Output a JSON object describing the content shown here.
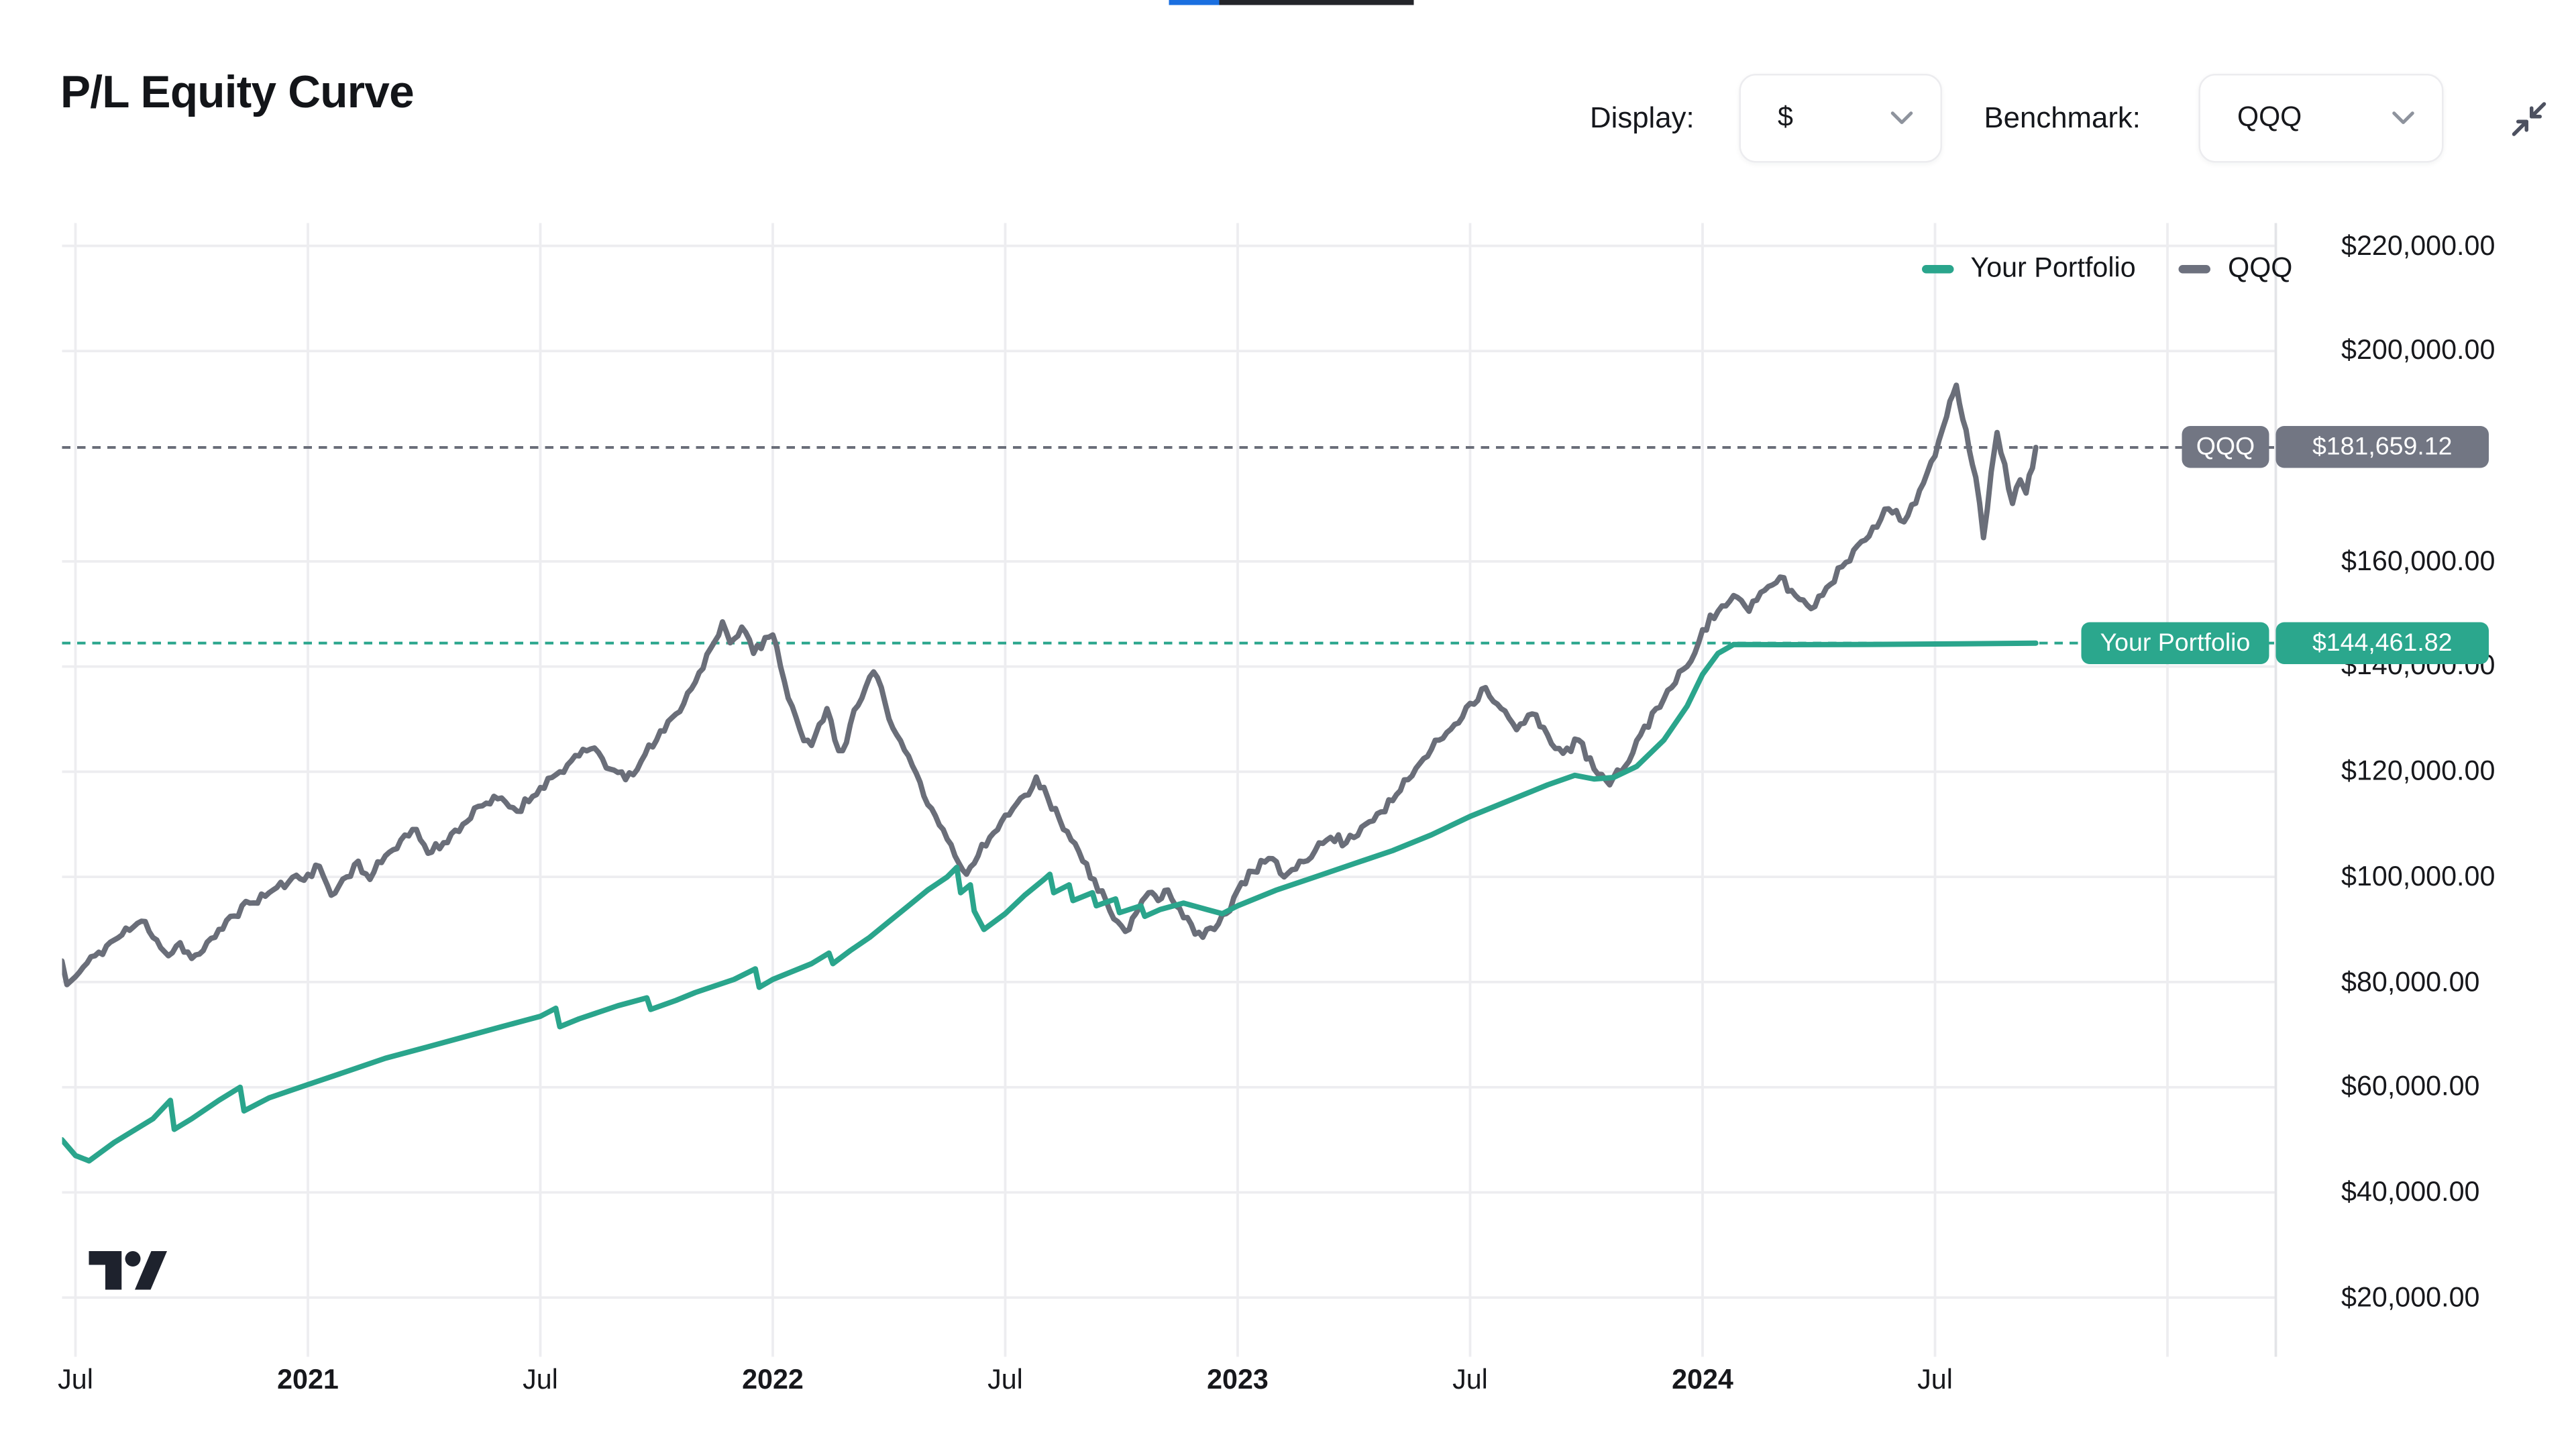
{
  "page": {
    "title": "P/L Equity Curve"
  },
  "top_bars": {
    "blue_color": "#1a6fe0",
    "dark_color": "#23252a"
  },
  "controls": {
    "display_label": "Display:",
    "display_value": "$",
    "benchmark_label": "Benchmark:",
    "benchmark_value": "QQQ"
  },
  "legend": {
    "items": [
      {
        "label": "Your Portfolio",
        "color": "#2aa58c"
      },
      {
        "label": "QQQ",
        "color": "#6d717e"
      }
    ]
  },
  "price_labels": {
    "benchmark": {
      "name": "QQQ",
      "value_text": "$181,659.12",
      "value": 181659.12,
      "color": "#727683"
    },
    "portfolio": {
      "name": "Your Portfolio",
      "value_text": "$144,461.82",
      "value": 144461.82,
      "color": "#2ba78d"
    }
  },
  "chart_data": {
    "type": "line",
    "title": "P/L Equity Curve",
    "x_unit": "months since 2020-07",
    "value_unit": "USD thousands",
    "grid": true,
    "legend_position": "top-right",
    "xlim": [
      -0.35,
      56.8
    ],
    "ylim": [
      10000,
      224500
    ],
    "x_ticks": [
      {
        "m": 0,
        "label": "Jul",
        "bold": false
      },
      {
        "m": 6,
        "label": "2021",
        "bold": true
      },
      {
        "m": 12,
        "label": "Jul",
        "bold": false
      },
      {
        "m": 18,
        "label": "2022",
        "bold": true
      },
      {
        "m": 24,
        "label": "Jul",
        "bold": false
      },
      {
        "m": 30,
        "label": "2023",
        "bold": true
      },
      {
        "m": 36,
        "label": "Jul",
        "bold": false
      },
      {
        "m": 42,
        "label": "2024",
        "bold": true
      },
      {
        "m": 48,
        "label": "Jul",
        "bold": false
      },
      {
        "m": 54,
        "label": "",
        "bold": false
      }
    ],
    "y_ticks": [
      {
        "v": 220000,
        "label": "$220,000.00"
      },
      {
        "v": 200000,
        "label": "$200,000.00"
      },
      {
        "v": 160000,
        "label": "$160,000.00"
      },
      {
        "v": 140000,
        "label": "$140,000.00"
      },
      {
        "v": 120000,
        "label": "$120,000.00"
      },
      {
        "v": 100000,
        "label": "$100,000.00"
      },
      {
        "v": 80000,
        "label": "$80,000.00"
      },
      {
        "v": 60000,
        "label": "$60,000.00"
      },
      {
        "v": 40000,
        "label": "$40,000.00"
      },
      {
        "v": 20000,
        "label": "$20,000.00"
      }
    ],
    "reference_lines": [
      {
        "series": "QQQ",
        "value": 181659.12
      },
      {
        "series": "Your Portfolio",
        "value": 144461.82
      }
    ],
    "series": [
      {
        "name": "QQQ",
        "color": "#6a6e79",
        "width": 3.2,
        "jitter": 1.15,
        "seed": 11,
        "points": [
          [
            -0.35,
            84
          ],
          [
            -0.22,
            79.5
          ],
          [
            0,
            81
          ],
          [
            0.5,
            85
          ],
          [
            1,
            88
          ],
          [
            1.5,
            90.5
          ],
          [
            1.8,
            91.5
          ],
          [
            2.1,
            88
          ],
          [
            2.4,
            85
          ],
          [
            2.7,
            87.5
          ],
          [
            3,
            84.5
          ],
          [
            3.3,
            86
          ],
          [
            3.6,
            88.5
          ],
          [
            4,
            92.5
          ],
          [
            4.5,
            95
          ],
          [
            5,
            97
          ],
          [
            5.5,
            99
          ],
          [
            6,
            100.5
          ],
          [
            6.3,
            102
          ],
          [
            6.6,
            96.5
          ],
          [
            7,
            100
          ],
          [
            7.3,
            103
          ],
          [
            7.6,
            99.5
          ],
          [
            8,
            104
          ],
          [
            8.4,
            107
          ],
          [
            8.8,
            109
          ],
          [
            9.1,
            104.5
          ],
          [
            9.5,
            106.5
          ],
          [
            10,
            110
          ],
          [
            10.5,
            113.5
          ],
          [
            11,
            115
          ],
          [
            11.4,
            112.5
          ],
          [
            12,
            117
          ],
          [
            12.5,
            120
          ],
          [
            13,
            123
          ],
          [
            13.4,
            124.5
          ],
          [
            13.8,
            120.5
          ],
          [
            14.2,
            118.5
          ],
          [
            14.6,
            122
          ],
          [
            15,
            126
          ],
          [
            15.5,
            131
          ],
          [
            16,
            137
          ],
          [
            16.4,
            143.5
          ],
          [
            16.7,
            148.5
          ],
          [
            16.9,
            144.5
          ],
          [
            17.2,
            147.5
          ],
          [
            17.5,
            142.5
          ],
          [
            17.8,
            145.5
          ],
          [
            18,
            146
          ],
          [
            18.2,
            140
          ],
          [
            18.4,
            134
          ],
          [
            18.7,
            128
          ],
          [
            19,
            125
          ],
          [
            19.2,
            129
          ],
          [
            19.4,
            132
          ],
          [
            19.6,
            126
          ],
          [
            19.8,
            124
          ],
          [
            20,
            129
          ],
          [
            20.3,
            134
          ],
          [
            20.6,
            139
          ],
          [
            20.9,
            133
          ],
          [
            21.2,
            127
          ],
          [
            21.5,
            123
          ],
          [
            21.8,
            118
          ],
          [
            22.1,
            113
          ],
          [
            22.4,
            109
          ],
          [
            22.7,
            104
          ],
          [
            23,
            100.5
          ],
          [
            23.3,
            104
          ],
          [
            23.6,
            107.5
          ],
          [
            23.9,
            110.5
          ],
          [
            24.2,
            113
          ],
          [
            24.5,
            115.5
          ],
          [
            24.8,
            119
          ],
          [
            25.1,
            115
          ],
          [
            25.4,
            111
          ],
          [
            25.7,
            107
          ],
          [
            26,
            103
          ],
          [
            26.3,
            99.5
          ],
          [
            26.6,
            95.5
          ],
          [
            26.9,
            91.5
          ],
          [
            27.2,
            90
          ],
          [
            27.45,
            94
          ],
          [
            27.7,
            97
          ],
          [
            27.95,
            95.5
          ],
          [
            28.2,
            97.5
          ],
          [
            28.5,
            94
          ],
          [
            28.8,
            91
          ],
          [
            29.1,
            88.5
          ],
          [
            29.4,
            90
          ],
          [
            29.7,
            93
          ],
          [
            30,
            97.5
          ],
          [
            30.4,
            101
          ],
          [
            30.8,
            103.5
          ],
          [
            31.2,
            100
          ],
          [
            31.6,
            103
          ],
          [
            32,
            105
          ],
          [
            32.4,
            107.5
          ],
          [
            32.8,
            106.5
          ],
          [
            33.2,
            109.5
          ],
          [
            33.6,
            112
          ],
          [
            34,
            114.5
          ],
          [
            34.4,
            118.5
          ],
          [
            34.8,
            122.5
          ],
          [
            35.2,
            126
          ],
          [
            35.6,
            129
          ],
          [
            36,
            133
          ],
          [
            36.4,
            136
          ],
          [
            36.8,
            132
          ],
          [
            37.2,
            128
          ],
          [
            37.6,
            131
          ],
          [
            38,
            127
          ],
          [
            38.4,
            123.5
          ],
          [
            38.8,
            126
          ],
          [
            39.2,
            120.5
          ],
          [
            39.6,
            117.5
          ],
          [
            40,
            121
          ],
          [
            40.4,
            127
          ],
          [
            40.8,
            132
          ],
          [
            41.2,
            136
          ],
          [
            41.6,
            140
          ],
          [
            42,
            147
          ],
          [
            42.4,
            150.5
          ],
          [
            42.8,
            153.5
          ],
          [
            43.2,
            150.5
          ],
          [
            43.6,
            154.5
          ],
          [
            44,
            157
          ],
          [
            44.4,
            153.5
          ],
          [
            44.8,
            151
          ],
          [
            45.2,
            155
          ],
          [
            45.6,
            159
          ],
          [
            46,
            163
          ],
          [
            46.4,
            166.5
          ],
          [
            46.8,
            170
          ],
          [
            47.2,
            167.5
          ],
          [
            47.6,
            173.5
          ],
          [
            48,
            180
          ],
          [
            48.3,
            187.5
          ],
          [
            48.55,
            193.5
          ],
          [
            48.8,
            185
          ],
          [
            49.05,
            176
          ],
          [
            49.25,
            164.5
          ],
          [
            49.45,
            177
          ],
          [
            49.6,
            184.5
          ],
          [
            49.8,
            178.5
          ],
          [
            50,
            171
          ],
          [
            50.2,
            175.5
          ],
          [
            50.35,
            173
          ],
          [
            50.6,
            181.66
          ]
        ]
      },
      {
        "name": "Your Portfolio",
        "color": "#2aa58c",
        "width": 3.2,
        "jitter": 0,
        "seed": 3,
        "points": [
          [
            -0.35,
            50
          ],
          [
            0,
            47
          ],
          [
            0.35,
            46
          ],
          [
            1,
            49.5
          ],
          [
            2,
            54
          ],
          [
            2.45,
            57.5
          ],
          [
            2.55,
            52
          ],
          [
            3,
            54
          ],
          [
            3.7,
            57.5
          ],
          [
            4.25,
            60
          ],
          [
            4.35,
            55.5
          ],
          [
            5,
            58
          ],
          [
            6,
            60.5
          ],
          [
            7,
            63
          ],
          [
            8,
            65.5
          ],
          [
            9,
            67.5
          ],
          [
            10,
            69.5
          ],
          [
            11,
            71.5
          ],
          [
            12,
            73.5
          ],
          [
            12.4,
            75
          ],
          [
            12.5,
            71.5
          ],
          [
            13,
            73
          ],
          [
            14,
            75.5
          ],
          [
            14.75,
            77
          ],
          [
            14.85,
            74.8
          ],
          [
            15.5,
            76.5
          ],
          [
            16,
            78
          ],
          [
            17,
            80.5
          ],
          [
            17.55,
            82.5
          ],
          [
            17.65,
            79
          ],
          [
            18,
            80.5
          ],
          [
            19,
            83.5
          ],
          [
            19.45,
            85.5
          ],
          [
            19.55,
            83.5
          ],
          [
            20,
            86
          ],
          [
            20.5,
            88.5
          ],
          [
            21,
            91.5
          ],
          [
            21.5,
            94.5
          ],
          [
            22,
            97.5
          ],
          [
            22.5,
            100
          ],
          [
            22.75,
            101.8
          ],
          [
            22.85,
            97
          ],
          [
            23.1,
            98.5
          ],
          [
            23.2,
            93.5
          ],
          [
            23.45,
            90
          ],
          [
            24,
            93
          ],
          [
            24.5,
            96.5
          ],
          [
            25,
            99.5
          ],
          [
            25.15,
            100.5
          ],
          [
            25.25,
            97
          ],
          [
            25.65,
            98.5
          ],
          [
            25.75,
            95.5
          ],
          [
            26.25,
            97
          ],
          [
            26.35,
            94.5
          ],
          [
            26.85,
            95.8
          ],
          [
            26.95,
            93.2
          ],
          [
            27.5,
            94.5
          ],
          [
            27.6,
            92.5
          ],
          [
            28,
            93.8
          ],
          [
            28.6,
            95
          ],
          [
            29.2,
            93.8
          ],
          [
            29.6,
            93
          ],
          [
            30,
            94.5
          ],
          [
            31,
            97.5
          ],
          [
            32,
            100
          ],
          [
            33,
            102.5
          ],
          [
            34,
            105
          ],
          [
            35,
            108
          ],
          [
            36,
            111.5
          ],
          [
            37,
            114.5
          ],
          [
            38,
            117.5
          ],
          [
            38.7,
            119.3
          ],
          [
            39.2,
            118.6
          ],
          [
            39.7,
            118.9
          ],
          [
            40.3,
            121
          ],
          [
            41,
            126
          ],
          [
            41.6,
            132.5
          ],
          [
            42,
            138.5
          ],
          [
            42.4,
            142.5
          ],
          [
            42.8,
            144.2
          ],
          [
            44,
            144.15
          ],
          [
            46,
            144.2
          ],
          [
            48,
            144.3
          ],
          [
            50.6,
            144.46
          ]
        ]
      }
    ]
  }
}
